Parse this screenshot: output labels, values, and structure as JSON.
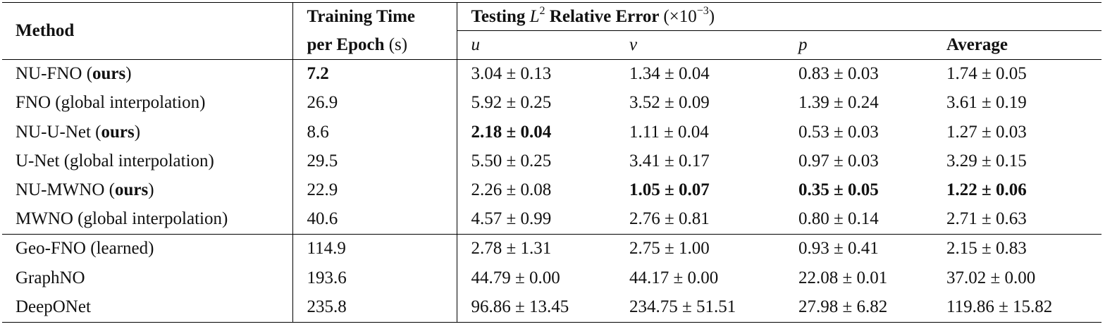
{
  "table": {
    "header": {
      "method": [
        {
          "text": "Method",
          "bold": true
        }
      ],
      "training_time": [
        [
          {
            "text": "Training Time",
            "bold": true
          }
        ],
        [
          {
            "text": "per Epoch ",
            "bold": true
          },
          {
            "text": "(s)"
          }
        ]
      ],
      "testing": [
        {
          "text": "Testing ",
          "bold": true
        },
        {
          "text": "L",
          "italic": true
        },
        {
          "text": "2",
          "sup": true
        },
        {
          "text": " Relative Error ",
          "bold": true
        },
        {
          "text": "(×10"
        },
        {
          "text": "−3",
          "sup": true
        },
        {
          "text": ")"
        }
      ],
      "columns": [
        [
          {
            "text": "u",
            "italic": true
          }
        ],
        [
          {
            "text": "v",
            "italic": true
          }
        ],
        [
          {
            "text": "p",
            "italic": true
          }
        ],
        [
          {
            "text": "Average",
            "bold": true
          }
        ]
      ]
    },
    "groups": [
      [
        [
          [
            {
              "text": "NU-FNO ("
            },
            {
              "text": "ours",
              "bold": true
            },
            {
              "text": ")"
            }
          ],
          [
            {
              "text": "7.2",
              "bold": true
            }
          ],
          [
            {
              "text": "3.04 ± 0.13"
            }
          ],
          [
            {
              "text": "1.34 ± 0.04"
            }
          ],
          [
            {
              "text": "0.83 ± 0.03"
            }
          ],
          [
            {
              "text": "1.74 ± 0.05"
            }
          ]
        ],
        [
          [
            {
              "text": "FNO (global interpolation)"
            }
          ],
          [
            {
              "text": "26.9"
            }
          ],
          [
            {
              "text": "5.92 ± 0.25"
            }
          ],
          [
            {
              "text": "3.52 ± 0.09"
            }
          ],
          [
            {
              "text": "1.39 ± 0.24"
            }
          ],
          [
            {
              "text": "3.61 ± 0.19"
            }
          ]
        ],
        [
          [
            {
              "text": "NU-U-Net ("
            },
            {
              "text": "ours",
              "bold": true
            },
            {
              "text": ")"
            }
          ],
          [
            {
              "text": "8.6"
            }
          ],
          [
            {
              "text": "2.18 ± 0.04",
              "bold": true
            }
          ],
          [
            {
              "text": "1.11 ± 0.04"
            }
          ],
          [
            {
              "text": "0.53 ± 0.03"
            }
          ],
          [
            {
              "text": "1.27 ± 0.03"
            }
          ]
        ],
        [
          [
            {
              "text": "U-Net (global interpolation)"
            }
          ],
          [
            {
              "text": "29.5"
            }
          ],
          [
            {
              "text": "5.50 ± 0.25"
            }
          ],
          [
            {
              "text": "3.41 ± 0.17"
            }
          ],
          [
            {
              "text": "0.97 ± 0.03"
            }
          ],
          [
            {
              "text": "3.29 ± 0.15"
            }
          ]
        ],
        [
          [
            {
              "text": "NU-MWNO ("
            },
            {
              "text": "ours",
              "bold": true
            },
            {
              "text": ")"
            }
          ],
          [
            {
              "text": "22.9"
            }
          ],
          [
            {
              "text": "2.26 ± 0.08"
            }
          ],
          [
            {
              "text": "1.05 ± 0.07",
              "bold": true
            }
          ],
          [
            {
              "text": "0.35 ± 0.05",
              "bold": true
            }
          ],
          [
            {
              "text": "1.22 ± 0.06",
              "bold": true
            }
          ]
        ],
        [
          [
            {
              "text": "MWNO (global interpolation)"
            }
          ],
          [
            {
              "text": "40.6"
            }
          ],
          [
            {
              "text": "4.57 ± 0.99"
            }
          ],
          [
            {
              "text": "2.76 ± 0.81"
            }
          ],
          [
            {
              "text": "0.80 ± 0.14"
            }
          ],
          [
            {
              "text": "2.71 ± 0.63"
            }
          ]
        ]
      ],
      [
        [
          [
            {
              "text": "Geo-FNO (learned)"
            }
          ],
          [
            {
              "text": "114.9"
            }
          ],
          [
            {
              "text": "2.78 ± 1.31"
            }
          ],
          [
            {
              "text": "2.75 ± 1.00"
            }
          ],
          [
            {
              "text": "0.93 ± 0.41"
            }
          ],
          [
            {
              "text": "2.15 ± 0.83"
            }
          ]
        ],
        [
          [
            {
              "text": "GraphNO"
            }
          ],
          [
            {
              "text": "193.6"
            }
          ],
          [
            {
              "text": "44.79 ± 0.00"
            }
          ],
          [
            {
              "text": "44.17 ± 0.00"
            }
          ],
          [
            {
              "text": "22.08 ± 0.01"
            }
          ],
          [
            {
              "text": "37.02 ± 0.00"
            }
          ]
        ],
        [
          [
            {
              "text": "DeepONet"
            }
          ],
          [
            {
              "text": "235.8"
            }
          ],
          [
            {
              "text": "96.86 ± 13.45"
            }
          ],
          [
            {
              "text": "234.75 ± 51.51"
            }
          ],
          [
            {
              "text": "27.98 ± 6.82"
            }
          ],
          [
            {
              "text": "119.86 ± 15.82"
            }
          ]
        ]
      ]
    ]
  }
}
